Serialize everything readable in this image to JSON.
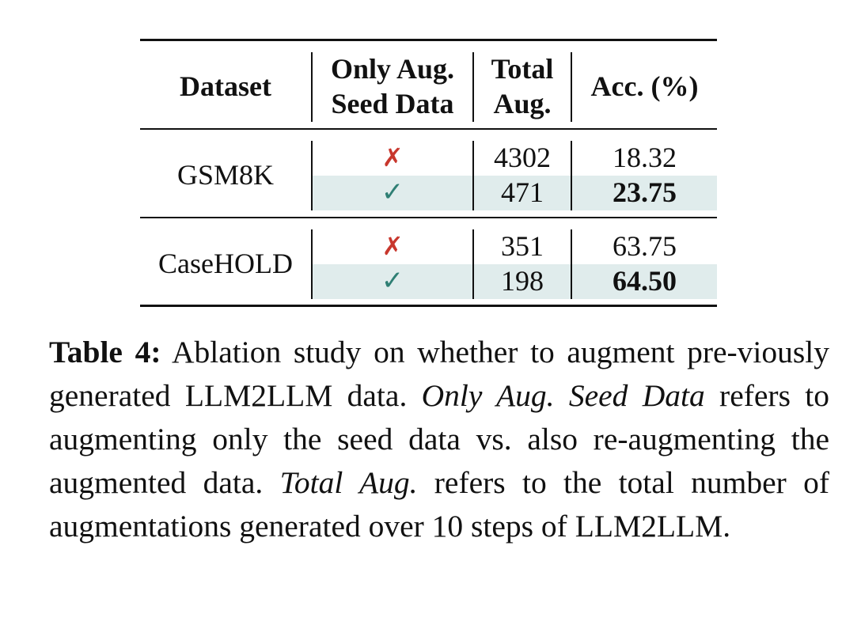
{
  "table": {
    "headers": {
      "dataset": "Dataset",
      "only_aug_line1": "Only Aug.",
      "only_aug_line2": "Seed Data",
      "total_line1": "Total",
      "total_line2": "Aug.",
      "acc": "Acc. (%)"
    },
    "groups": [
      {
        "dataset": "GSM8K",
        "rows": [
          {
            "only_aug": "✗",
            "total": "4302",
            "acc": "18.32",
            "bold": false
          },
          {
            "only_aug": "✓",
            "total": "471",
            "acc": "23.75",
            "bold": true
          }
        ]
      },
      {
        "dataset": "CaseHOLD",
        "rows": [
          {
            "only_aug": "✗",
            "total": "351",
            "acc": "63.75",
            "bold": false
          },
          {
            "only_aug": "✓",
            "total": "198",
            "acc": "64.50",
            "bold": true
          }
        ]
      }
    ],
    "colors": {
      "highlight": "#e0ecec",
      "cross": "#c8372d",
      "check": "#2f7f74"
    }
  },
  "caption": {
    "label": "Table 4:",
    "part1": " Ablation study on whether to augment pre-viously generated LLM2LLM data. ",
    "italic1": "Only Aug. Seed Data",
    "part2": " refers to augmenting only the seed data vs. also re-augmenting the augmented data. ",
    "italic2": "Total Aug.",
    "part3": " refers to the total number of augmentations generated over 10 steps of LLM2LLM."
  }
}
